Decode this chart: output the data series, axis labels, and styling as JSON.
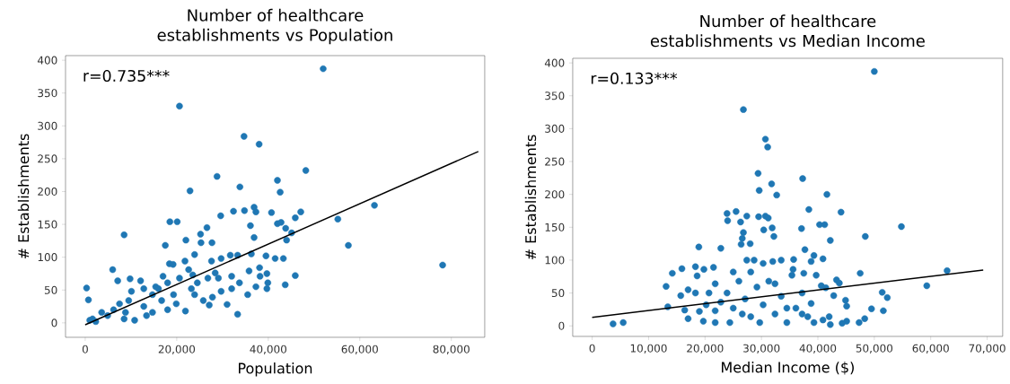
{
  "chart_data": [
    {
      "type": "scatter",
      "title": "Number of healthcare establishments vs Population",
      "xlabel": "Population",
      "ylabel": "# Establishments",
      "xlim": [
        -4300,
        87300
      ],
      "ylim": [
        -22,
        407
      ],
      "xticks": [
        {
          "value": 0,
          "label": "0"
        },
        {
          "value": 20000,
          "label": "20,000"
        },
        {
          "value": 40000,
          "label": "40,000"
        },
        {
          "value": 60000,
          "label": "60,000"
        },
        {
          "value": 80000,
          "label": "80,000"
        }
      ],
      "yticks": [
        0,
        50,
        100,
        150,
        200,
        250,
        300,
        350,
        400
      ],
      "annotations": [
        "r=0.735***"
      ],
      "series": [
        {
          "type": "scatter",
          "marker": "circle",
          "color": "#1f77b4",
          "x": [
            52000,
            20600,
            34700,
            38000,
            48200,
            28800,
            42000,
            42600,
            22900,
            33800,
            63200,
            55200,
            57500,
            78100,
            8500,
            18500,
            20100,
            29600,
            32400,
            34800,
            36900,
            37300,
            40700,
            45900,
            47100,
            36100,
            36900,
            42000,
            42800,
            43800,
            45100,
            44000,
            26600,
            25200,
            25300,
            27700,
            22000,
            17500,
            23900,
            18400,
            19200,
            21800,
            27600,
            29700,
            31700,
            33300,
            36300,
            39500,
            41500,
            43300,
            6000,
            22600,
            23500,
            28400,
            29100,
            26800,
            32000,
            35800,
            38100,
            39700,
            38200,
            39900,
            45900,
            43700,
            39700,
            37300,
            35500,
            31000,
            33300,
            300,
            700,
            7100,
            9800,
            12100,
            10100,
            12800,
            15400,
            17000,
            18000,
            20600,
            21900,
            25800,
            27100,
            23900,
            1600,
            3600,
            6200,
            8500,
            10800,
            12800,
            14700,
            16700,
            18000,
            19300,
            19900,
            9500,
            7500,
            4900,
            2300,
            14700,
            16000,
            23200,
            24500,
            29700,
            27800,
            32000,
            33700,
            13400,
            8800,
            1000
          ],
          "values": [
            387,
            330,
            284,
            272,
            232,
            223,
            217,
            199,
            201,
            207,
            179,
            158,
            118,
            88,
            134,
            154,
            154,
            163,
            170,
            171,
            176,
            169,
            168,
            160,
            169,
            148,
            130,
            151,
            153,
            144,
            137,
            126,
            145,
            135,
            122,
            122,
            126,
            118,
            104,
            90,
            89,
            94,
            94,
            98,
            103,
            103,
            105,
            102,
            98,
            98,
            81,
            81,
            73,
            76,
            68,
            68,
            71,
            79,
            84,
            75,
            71,
            61,
            72,
            58,
            52,
            55,
            43,
            28,
            13,
            53,
            35,
            64,
            67,
            64,
            48,
            52,
            55,
            71,
            61,
            68,
            18,
            34,
            27,
            43,
            6,
            16,
            20,
            6,
            4,
            25,
            16,
            34,
            20,
            43,
            29,
            34,
            29,
            11,
            2,
            43,
            52,
            52,
            61,
            48,
            39,
            52,
            61,
            11,
            16,
            4
          ]
        },
        {
          "type": "line",
          "marker": "none",
          "color": "#000000",
          "x": [
            0,
            85900
          ],
          "values": [
            -3,
            261
          ]
        }
      ]
    },
    {
      "type": "scatter",
      "title": "Number of healthcare establishments vs Median Income",
      "xlabel": "Median Income ($)",
      "ylabel": "# Establishments",
      "xlim": [
        -3450,
        72750
      ],
      "ylim": [
        -16,
        407
      ],
      "xticks": [
        {
          "value": 0,
          "label": "0"
        },
        {
          "value": 10000,
          "label": "10,000"
        },
        {
          "value": 20000,
          "label": "20,000"
        },
        {
          "value": 30000,
          "label": "30,000"
        },
        {
          "value": 40000,
          "label": "40,000"
        },
        {
          "value": 50000,
          "label": "50,000"
        },
        {
          "value": 60000,
          "label": "60,000"
        },
        {
          "value": 70000,
          "label": "70,000"
        }
      ],
      "yticks": [
        0,
        50,
        100,
        150,
        200,
        250,
        300,
        350,
        400
      ],
      "annotations": [
        "r=0.133***"
      ],
      "series": [
        {
          "type": "scatter",
          "marker": "circle",
          "color": "#1f77b4",
          "x": [
            50000,
            26800,
            30700,
            31100,
            29400,
            29600,
            31800,
            32700,
            37300,
            41600,
            44100,
            38400,
            23900,
            25500,
            27400,
            24000,
            26300,
            29500,
            30700,
            31200,
            30400,
            31900,
            32200,
            26800,
            26600,
            28000,
            26400,
            37100,
            40300,
            41200,
            42200,
            48400,
            54800,
            37700,
            39300,
            40900,
            38800,
            18900,
            22800,
            14200,
            15900,
            18300,
            18600,
            19800,
            21500,
            13100,
            13400,
            15700,
            17000,
            16400,
            17000,
            18300,
            19000,
            20700,
            19700,
            3700,
            5500,
            27400,
            28700,
            30300,
            32000,
            33500,
            35700,
            35400,
            35600,
            37500,
            39700,
            40600,
            41400,
            43300,
            43800,
            42800,
            44900,
            45100,
            47500,
            51400,
            52300,
            49500,
            51600,
            59300,
            62900,
            48300,
            47300,
            45100,
            42200,
            42000,
            44300,
            21800,
            22800,
            23900,
            25000,
            26000,
            27100,
            28100,
            29200,
            30300,
            31300,
            32400,
            33500,
            34500,
            36100,
            37200,
            38200,
            39300,
            24400,
            21800,
            26600,
            29700,
            28100,
            32400,
            34500,
            25000,
            21800,
            20200,
            37200,
            38800,
            40900
          ],
          "values": [
            387,
            329,
            284,
            272,
            232,
            206,
            216,
            199,
            224,
            200,
            173,
            177,
            171,
            174,
            167,
            160,
            158,
            166,
            167,
            164,
            146,
            149,
            136,
            142,
            133,
            125,
            124,
            148,
            154,
            154,
            130,
            136,
            151,
            116,
            107,
            102,
            98,
            120,
            118,
            80,
            87,
            90,
            76,
            86,
            89,
            60,
            29,
            46,
            55,
            24,
            11,
            50,
            22,
            50,
            7,
            3,
            5,
            100,
            100,
            95,
            98,
            100,
            101,
            77,
            86,
            80,
            77,
            61,
            58,
            70,
            65,
            46,
            39,
            30,
            80,
            51,
            43,
            26,
            23,
            61,
            84,
            11,
            5,
            7,
            2,
            14,
            4,
            64,
            36,
            50,
            27,
            68,
            41,
            14,
            59,
            32,
            68,
            18,
            45,
            5,
            27,
            50,
            14,
            5,
            5,
            5,
            18,
            5,
            82,
            64,
            27,
            82,
            23,
            32,
            18,
            34,
            9
          ]
        },
        {
          "type": "line",
          "marker": "none",
          "color": "#000000",
          "x": [
            0,
            69300
          ],
          "values": [
            13,
            85
          ]
        }
      ]
    }
  ]
}
